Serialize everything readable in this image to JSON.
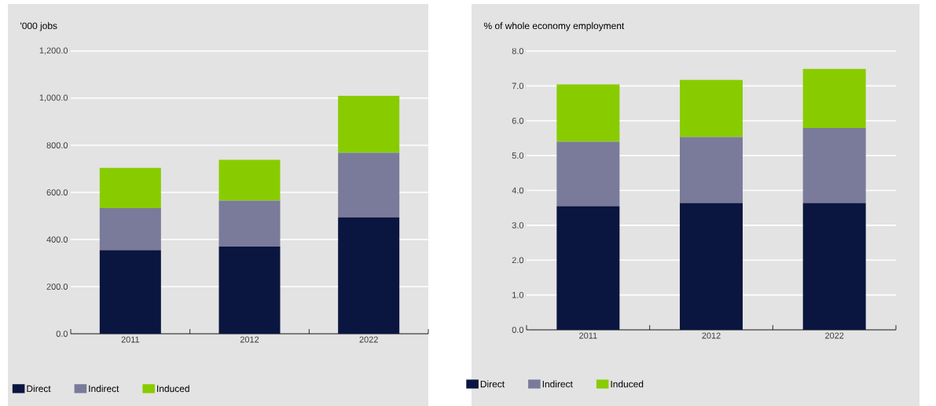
{
  "chart_data": [
    {
      "type": "bar",
      "stacked": true,
      "ylabel": "'000 jobs",
      "categories": [
        "2011",
        "2012",
        "2022"
      ],
      "series": [
        {
          "name": "Direct",
          "color": "#0a1640",
          "values": [
            355,
            370,
            494
          ]
        },
        {
          "name": "Indirect",
          "color": "#7a7a9a",
          "values": [
            178,
            195,
            274
          ]
        },
        {
          "name": "Induced",
          "color": "#88cc00",
          "values": [
            171,
            173,
            242
          ]
        }
      ],
      "ylim": [
        0,
        1200
      ],
      "yticks": [
        {
          "value": 0,
          "label": "0.0"
        },
        {
          "value": 200,
          "label": "200.0"
        },
        {
          "value": 400,
          "label": "400.0"
        },
        {
          "value": 600,
          "label": "600.0"
        },
        {
          "value": 800,
          "label": "800.0"
        },
        {
          "value": 1000,
          "label": "1,000.0"
        },
        {
          "value": 1200,
          "label": "1,200.0"
        }
      ],
      "grid": "y",
      "legend": "bottom"
    },
    {
      "type": "bar",
      "stacked": true,
      "ylabel": "% of whole economy employment",
      "categories": [
        "2011",
        "2012",
        "2022"
      ],
      "series": [
        {
          "name": "Direct",
          "color": "#0a1640",
          "values": [
            3.55,
            3.64,
            3.64
          ]
        },
        {
          "name": "Indirect",
          "color": "#7a7a9a",
          "values": [
            1.85,
            1.89,
            2.15
          ]
        },
        {
          "name": "Induced",
          "color": "#88cc00",
          "values": [
            1.64,
            1.64,
            1.7
          ]
        }
      ],
      "ylim": [
        0,
        8
      ],
      "yticks": [
        {
          "value": 0,
          "label": "0.0"
        },
        {
          "value": 1,
          "label": "1.0"
        },
        {
          "value": 2,
          "label": "2.0"
        },
        {
          "value": 3,
          "label": "3.0"
        },
        {
          "value": 4,
          "label": "4.0"
        },
        {
          "value": 5,
          "label": "5.0"
        },
        {
          "value": 6,
          "label": "6.0"
        },
        {
          "value": 7,
          "label": "7.0"
        },
        {
          "value": 8,
          "label": "8.0"
        }
      ],
      "grid": "y",
      "legend": "bottom"
    }
  ]
}
